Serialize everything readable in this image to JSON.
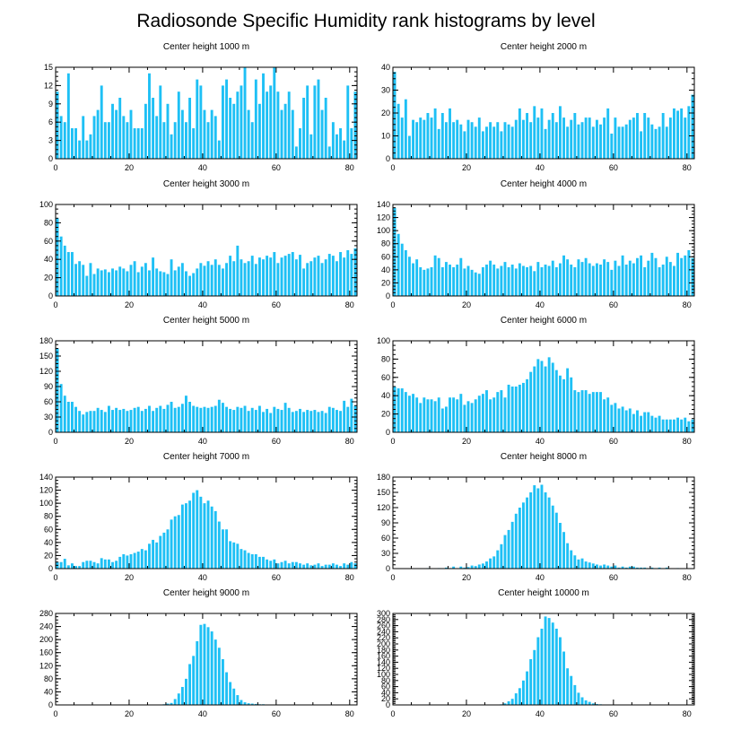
{
  "figure": {
    "title": "Radiosonde Specific Humidity rank histograms by level",
    "bar_color": "#1ec0f5",
    "axis_color": "#000000"
  },
  "chart_data": [
    {
      "type": "bar",
      "title": "Center height 1000 m",
      "xlim": [
        0,
        82
      ],
      "ylim": [
        0,
        15
      ],
      "xticks": [
        0,
        20,
        40,
        60,
        80
      ],
      "yticks": [
        0,
        3,
        6,
        9,
        12,
        15
      ],
      "values": [
        11,
        7,
        6,
        14,
        5,
        5,
        3,
        7,
        3,
        4,
        7,
        8,
        12,
        6,
        6,
        9,
        8,
        10,
        7,
        6,
        8,
        5,
        5,
        5,
        9,
        14,
        10,
        7,
        12,
        6,
        9,
        4,
        6,
        11,
        8,
        6,
        10,
        5,
        13,
        12,
        8,
        6,
        8,
        7,
        3,
        12,
        13,
        10,
        9,
        11,
        12,
        15,
        8,
        6,
        13,
        9,
        14,
        11,
        12,
        15,
        11,
        8,
        9,
        11,
        8,
        2,
        5,
        10,
        12,
        4,
        12,
        13,
        8,
        10,
        2,
        6,
        4,
        5,
        3,
        12,
        5,
        11
      ]
    },
    {
      "type": "bar",
      "title": "Center height 2000 m",
      "xlim": [
        0,
        82
      ],
      "ylim": [
        0,
        40
      ],
      "xticks": [
        0,
        20,
        40,
        60,
        80
      ],
      "yticks": [
        0,
        10,
        20,
        30,
        40
      ],
      "values": [
        38,
        24,
        18,
        26,
        10,
        17,
        16,
        18,
        17,
        20,
        18,
        22,
        13,
        20,
        16,
        22,
        16,
        17,
        15,
        12,
        17,
        16,
        14,
        18,
        12,
        14,
        16,
        14,
        16,
        12,
        16,
        15,
        14,
        17,
        22,
        17,
        20,
        16,
        23,
        18,
        22,
        13,
        17,
        20,
        16,
        23,
        18,
        14,
        17,
        20,
        15,
        16,
        18,
        18,
        14,
        17,
        15,
        18,
        22,
        11,
        18,
        14,
        14,
        15,
        17,
        18,
        20,
        12,
        20,
        18,
        15,
        13,
        14,
        20,
        14,
        18,
        22,
        21,
        22,
        18,
        23,
        28
      ]
    },
    {
      "type": "bar",
      "title": "Center height 3000 m",
      "xlim": [
        0,
        82
      ],
      "ylim": [
        0,
        100
      ],
      "xticks": [
        0,
        20,
        40,
        60,
        80
      ],
      "yticks": [
        0,
        20,
        40,
        60,
        80,
        100
      ],
      "values": [
        85,
        65,
        55,
        48,
        48,
        35,
        38,
        34,
        22,
        36,
        24,
        30,
        28,
        29,
        26,
        30,
        28,
        32,
        30,
        27,
        34,
        38,
        26,
        32,
        36,
        28,
        42,
        30,
        27,
        26,
        24,
        40,
        28,
        32,
        36,
        27,
        22,
        25,
        30,
        36,
        33,
        38,
        34,
        40,
        34,
        30,
        36,
        44,
        38,
        55,
        40,
        36,
        38,
        44,
        35,
        42,
        40,
        44,
        42,
        48,
        36,
        42,
        44,
        46,
        48,
        40,
        45,
        30,
        36,
        38,
        42,
        44,
        36,
        40,
        46,
        44,
        38,
        48,
        42,
        50,
        46,
        52
      ]
    },
    {
      "type": "bar",
      "title": "Center height 4000 m",
      "xlim": [
        0,
        82
      ],
      "ylim": [
        0,
        140
      ],
      "xticks": [
        0,
        20,
        40,
        60,
        80
      ],
      "yticks": [
        0,
        20,
        40,
        60,
        80,
        100,
        120,
        140
      ],
      "values": [
        135,
        95,
        80,
        70,
        60,
        50,
        56,
        44,
        40,
        42,
        44,
        62,
        58,
        44,
        52,
        48,
        44,
        48,
        58,
        42,
        46,
        40,
        36,
        34,
        44,
        48,
        54,
        48,
        42,
        46,
        52,
        44,
        48,
        42,
        50,
        46,
        44,
        46,
        38,
        52,
        44,
        48,
        46,
        54,
        44,
        50,
        62,
        56,
        48,
        44,
        56,
        52,
        58,
        50,
        46,
        50,
        48,
        56,
        52,
        40,
        54,
        46,
        62,
        48,
        54,
        50,
        58,
        62,
        44,
        54,
        66,
        58,
        44,
        48,
        60,
        52,
        46,
        66,
        58,
        62,
        70,
        58
      ]
    },
    {
      "type": "bar",
      "title": "Center height 5000 m",
      "xlim": [
        0,
        82
      ],
      "ylim": [
        0,
        180
      ],
      "xticks": [
        0,
        20,
        40,
        60,
        80
      ],
      "yticks": [
        0,
        30,
        60,
        90,
        120,
        150,
        180
      ],
      "values": [
        165,
        95,
        72,
        60,
        60,
        50,
        42,
        35,
        40,
        42,
        42,
        48,
        44,
        40,
        52,
        44,
        48,
        44,
        46,
        42,
        44,
        48,
        50,
        42,
        46,
        52,
        42,
        48,
        52,
        46,
        54,
        60,
        48,
        50,
        56,
        72,
        60,
        52,
        50,
        48,
        50,
        48,
        50,
        52,
        64,
        58,
        50,
        46,
        44,
        50,
        48,
        52,
        42,
        48,
        44,
        52,
        40,
        46,
        38,
        50,
        46,
        44,
        58,
        48,
        40,
        42,
        46,
        40,
        44,
        42,
        44,
        40,
        42,
        38,
        50,
        48,
        44,
        42,
        62,
        50,
        66,
        52
      ]
    },
    {
      "type": "bar",
      "title": "Center height 6000 m",
      "xlim": [
        0,
        82
      ],
      "ylim": [
        0,
        100
      ],
      "xticks": [
        0,
        20,
        40,
        60,
        80
      ],
      "yticks": [
        0,
        20,
        40,
        60,
        80,
        100
      ],
      "values": [
        50,
        48,
        48,
        44,
        40,
        42,
        38,
        32,
        38,
        36,
        36,
        34,
        38,
        26,
        28,
        38,
        38,
        36,
        42,
        30,
        34,
        32,
        36,
        40,
        42,
        46,
        36,
        38,
        44,
        46,
        38,
        52,
        50,
        50,
        52,
        54,
        58,
        66,
        72,
        80,
        78,
        72,
        82,
        76,
        68,
        62,
        58,
        70,
        60,
        46,
        44,
        46,
        46,
        42,
        44,
        44,
        44,
        36,
        38,
        30,
        32,
        26,
        28,
        24,
        26,
        20,
        24,
        18,
        22,
        22,
        18,
        16,
        18,
        14,
        14,
        14,
        14,
        16,
        14,
        16,
        12,
        14
      ]
    },
    {
      "type": "bar",
      "title": "Center height 7000 m",
      "xlim": [
        0,
        82
      ],
      "ylim": [
        0,
        140
      ],
      "xticks": [
        0,
        20,
        40,
        60,
        80
      ],
      "yticks": [
        0,
        20,
        40,
        60,
        80,
        100,
        120,
        140
      ],
      "values": [
        10,
        10,
        15,
        5,
        8,
        4,
        4,
        10,
        12,
        12,
        10,
        8,
        16,
        14,
        14,
        10,
        12,
        18,
        22,
        20,
        22,
        24,
        26,
        30,
        28,
        38,
        44,
        40,
        50,
        55,
        60,
        75,
        80,
        82,
        98,
        100,
        104,
        116,
        120,
        110,
        100,
        104,
        95,
        88,
        72,
        60,
        60,
        42,
        40,
        38,
        30,
        28,
        24,
        22,
        22,
        18,
        18,
        14,
        12,
        14,
        8,
        10,
        12,
        8,
        10,
        10,
        8,
        6,
        8,
        5,
        6,
        8,
        4,
        6,
        6,
        8,
        6,
        4,
        8,
        6,
        10,
        8
      ]
    },
    {
      "type": "bar",
      "title": "Center height 8000 m",
      "xlim": [
        0,
        82
      ],
      "ylim": [
        0,
        180
      ],
      "xticks": [
        0,
        20,
        40,
        60,
        80
      ],
      "yticks": [
        0,
        30,
        60,
        90,
        120,
        150,
        180
      ],
      "values": [
        0,
        0,
        0,
        0,
        0,
        0,
        0,
        0,
        0,
        1,
        0,
        0,
        1,
        0,
        2,
        1,
        4,
        0,
        4,
        2,
        3,
        6,
        5,
        8,
        10,
        14,
        20,
        24,
        36,
        48,
        66,
        76,
        92,
        108,
        120,
        130,
        140,
        150,
        164,
        158,
        165,
        150,
        140,
        124,
        110,
        90,
        72,
        50,
        36,
        26,
        18,
        20,
        14,
        12,
        10,
        8,
        6,
        8,
        6,
        4,
        6,
        2,
        4,
        2,
        4,
        4,
        2,
        2,
        2,
        1,
        2,
        0,
        2,
        0,
        2,
        0,
        0,
        1,
        0,
        0,
        0,
        0
      ]
    },
    {
      "type": "bar",
      "title": "Center height 9000 m",
      "xlim": [
        0,
        82
      ],
      "ylim": [
        0,
        280
      ],
      "xticks": [
        0,
        20,
        40,
        60,
        80
      ],
      "yticks": [
        0,
        40,
        80,
        120,
        160,
        200,
        240,
        280
      ],
      "values": [
        0,
        0,
        0,
        0,
        0,
        0,
        0,
        0,
        0,
        0,
        0,
        0,
        0,
        0,
        0,
        0,
        0,
        0,
        0,
        0,
        0,
        0,
        0,
        0,
        0,
        0,
        0,
        0,
        1,
        2,
        4,
        6,
        18,
        35,
        55,
        80,
        125,
        150,
        195,
        245,
        248,
        238,
        225,
        200,
        175,
        140,
        100,
        70,
        50,
        30,
        15,
        8,
        5,
        4,
        3,
        2,
        2,
        1,
        1,
        0,
        0,
        0,
        0,
        0,
        0,
        0,
        0,
        0,
        0,
        0,
        0,
        0,
        0,
        0,
        0,
        0,
        0,
        0,
        0,
        0,
        0,
        0
      ]
    },
    {
      "type": "bar",
      "title": "Center height 10000 m",
      "xlim": [
        0,
        82
      ],
      "ylim": [
        0,
        300
      ],
      "xticks": [
        0,
        20,
        40,
        60,
        80
      ],
      "yticks": [
        0,
        20,
        40,
        60,
        80,
        100,
        120,
        140,
        160,
        180,
        200,
        220,
        240,
        260,
        280,
        300
      ],
      "values": [
        0,
        0,
        0,
        0,
        0,
        0,
        0,
        0,
        0,
        0,
        0,
        0,
        0,
        0,
        0,
        0,
        0,
        0,
        0,
        0,
        0,
        0,
        0,
        0,
        0,
        0,
        0,
        0,
        1,
        2,
        5,
        12,
        20,
        38,
        55,
        80,
        110,
        150,
        180,
        222,
        250,
        290,
        285,
        270,
        250,
        222,
        175,
        120,
        95,
        65,
        40,
        25,
        15,
        10,
        5,
        3,
        2,
        1,
        1,
        0,
        0,
        0,
        0,
        0,
        0,
        0,
        0,
        0,
        0,
        0,
        0,
        0,
        0,
        0,
        0,
        0,
        0,
        0,
        0,
        0,
        0,
        0
      ]
    }
  ]
}
